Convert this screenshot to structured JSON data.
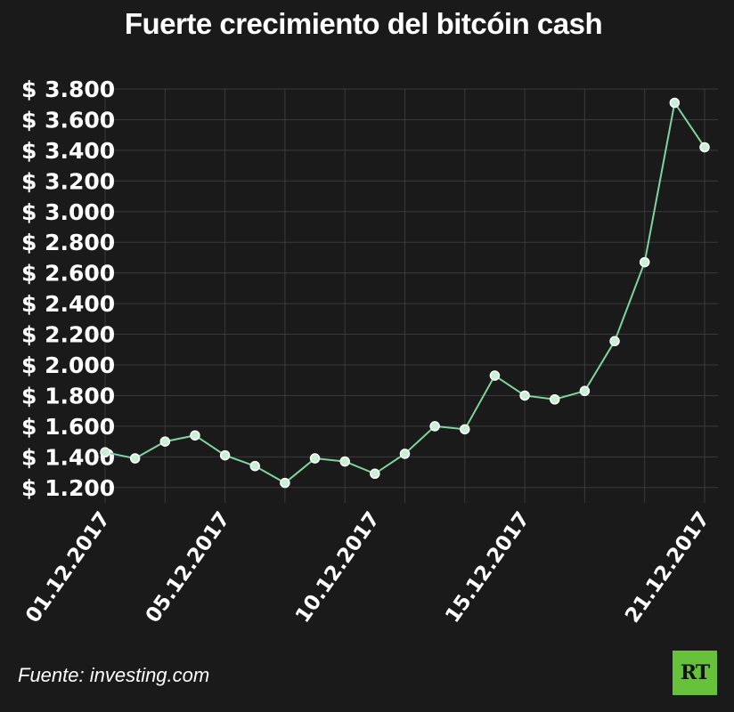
{
  "colors": {
    "background": "#1a1a1a",
    "grid": "#3a3a3a",
    "line": "#7ed4a0",
    "marker_fill": "#c9f0d6",
    "text": "#ffffff",
    "logo_bg": "#67c23a"
  },
  "footer": {
    "source": "Fuente: investing.com",
    "logo_text": "RT"
  },
  "chart_data": {
    "type": "line",
    "title": "Fuerte crecimiento del bitcóin cash",
    "xlabel": "",
    "ylabel": "",
    "grid": true,
    "ylim": [
      1100,
      3800
    ],
    "yticks": [
      1200,
      1400,
      1600,
      1800,
      2000,
      2200,
      2400,
      2600,
      2800,
      3000,
      3200,
      3400,
      3600,
      3800
    ],
    "ytick_labels": [
      "$ 1.200",
      "$ 1.400",
      "$ 1.600",
      "$ 1.800",
      "$ 2.000",
      "$ 2.200",
      "$ 2.400",
      "$ 2.600",
      "$ 2.800",
      "$ 3.000",
      "$ 3.200",
      "$ 3.400",
      "$ 3.600",
      "$ 3.800"
    ],
    "x_label_ticks": [
      {
        "index": 0,
        "label": "01.12.2017"
      },
      {
        "index": 4,
        "label": "05.12.2017"
      },
      {
        "index": 9,
        "label": "10.12.2017"
      },
      {
        "index": 14,
        "label": "15.12.2017"
      },
      {
        "index": 20,
        "label": "21.12.2017"
      }
    ],
    "x": [
      "01.12.2017",
      "02.12.2017",
      "03.12.2017",
      "04.12.2017",
      "05.12.2017",
      "06.12.2017",
      "07.12.2017",
      "08.12.2017",
      "09.12.2017",
      "10.12.2017",
      "11.12.2017",
      "12.12.2017",
      "13.12.2017",
      "14.12.2017",
      "15.12.2017",
      "16.12.2017",
      "17.12.2017",
      "18.12.2017",
      "19.12.2017",
      "20.12.2017",
      "21.12.2017"
    ],
    "series": [
      {
        "values": [
          1430,
          1390,
          1500,
          1540,
          1410,
          1340,
          1230,
          1390,
          1370,
          1290,
          1420,
          1600,
          1580,
          1930,
          1800,
          1775,
          1830,
          2155,
          2670,
          3710,
          3420
        ]
      }
    ]
  }
}
